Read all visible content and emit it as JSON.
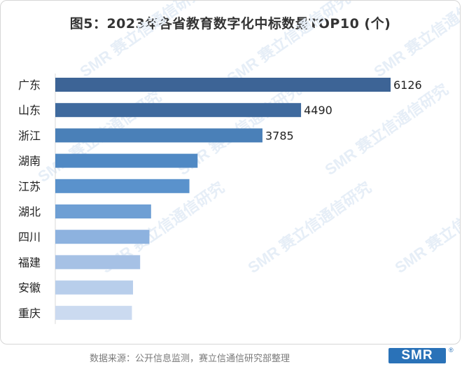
{
  "title": "图5：2023年各省教育数字化中标数量TOP10 (个)",
  "watermark": "SMR 赛立信通信研究",
  "footer": {
    "source": "数据来源：公开信息监测，赛立信通信研究部整理",
    "logo": "SMR",
    "logo_mark": "®"
  },
  "colors": {
    "bars": [
      "#3d6496",
      "#3f6a9e",
      "#4a80b8",
      "#5089c4",
      "#5a92cc",
      "#6e9fd4",
      "#8db2df",
      "#a6c1e5",
      "#b8ceeb",
      "#cbdaf0"
    ],
    "label": "#222222"
  },
  "chart_data": {
    "type": "bar",
    "orientation": "horizontal",
    "categories": [
      "广东",
      "山东",
      "浙江",
      "湖南",
      "江苏",
      "湖北",
      "四川",
      "福建",
      "安徽",
      "重庆"
    ],
    "values": [
      6126,
      4490,
      3785,
      2600,
      2450,
      1750,
      1720,
      1550,
      1420,
      1400
    ],
    "value_labels": [
      "6126",
      "4490",
      "3785",
      "",
      "",
      "",
      "",
      "",
      "",
      ""
    ],
    "xlim": [
      0,
      6126
    ],
    "grid": false,
    "legend": "none"
  }
}
